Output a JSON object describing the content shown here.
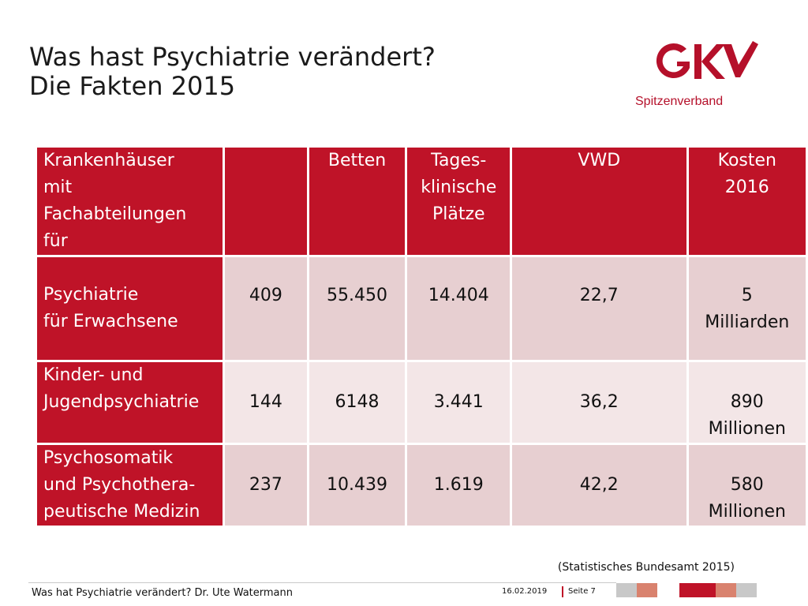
{
  "title": {
    "line1": "Was hast Psychiatrie verändert?",
    "line2": "Die Fakten 2015"
  },
  "logo": {
    "mark": "GKV",
    "subtitle": "Spitzenverband",
    "color": "#b5102a"
  },
  "table": {
    "header": {
      "label_lines": [
        "Krankenhäuser",
        "mit",
        "Fachabteilungen",
        "für"
      ],
      "col1": "",
      "col2": "Betten",
      "col3_lines": [
        "Tages-",
        "klinische",
        "Plätze"
      ],
      "col4": "VWD",
      "col5_lines": [
        "Kosten",
        "2016"
      ]
    },
    "rows": [
      {
        "label_lines": [
          "Psychiatrie",
          "für Erwachsene"
        ],
        "count": "409",
        "betten": "55.450",
        "plaetze": "14.404",
        "vwd": "22,7",
        "kosten_lines": [
          "5",
          "Milliarden"
        ]
      },
      {
        "label_lines": [
          "Kinder- und",
          "Jugendpsychiatrie"
        ],
        "count": "144",
        "betten": "6148",
        "plaetze": "3.441",
        "vwd": "36,2",
        "kosten_lines": [
          "890",
          "Millionen"
        ]
      },
      {
        "label_lines": [
          "Psychosomatik",
          "und Psychothera-",
          "peutische Medizin"
        ],
        "count": "237",
        "betten": "10.439",
        "plaetze": "1.619",
        "vwd": "42,2",
        "kosten_lines": [
          "580",
          "Millionen"
        ]
      }
    ]
  },
  "source": "(Statistisches Bundesamt 2015)",
  "footer": {
    "left": "Was hat Psychiatrie verändert? Dr. Ute Watermann",
    "date": "16.02.2019",
    "page": "Seite 7"
  },
  "colors": {
    "accent": "#bf1328",
    "row_dark": "#e7cfd1",
    "row_light": "#f3e6e7",
    "bar_gray": "#c8c8c8",
    "bar_salmon": "#d9826e"
  }
}
